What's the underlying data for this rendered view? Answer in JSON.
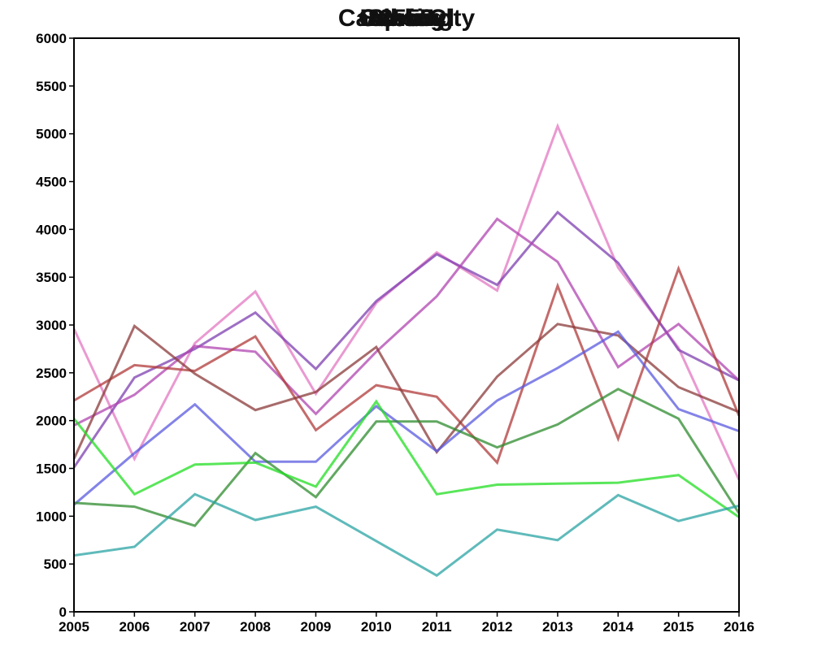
{
  "chart_data": {
    "type": "line",
    "title_overlaps": [
      "Sanford",
      "Lansing",
      "Oakland",
      "Carson City",
      "Albany",
      "Spring",
      "1559",
      "2557"
    ],
    "x": [
      2005,
      2006,
      2007,
      2008,
      2009,
      2010,
      2011,
      2012,
      2013,
      2014,
      2015,
      2016
    ],
    "x_ticks": [
      "2005",
      "2006",
      "2007",
      "2008",
      "2009",
      "2010",
      "2011",
      "2012",
      "2013",
      "2014",
      "2015",
      "2016"
    ],
    "xlim": [
      2005,
      2016
    ],
    "ylim": [
      0,
      6000
    ],
    "y_ticks": [
      "0",
      "500",
      "1000",
      "1500",
      "2000",
      "2500",
      "3000",
      "3500",
      "4000",
      "4500",
      "5000",
      "5500",
      "6000"
    ],
    "grid": false,
    "series": [
      {
        "color": "#e377c2",
        "values": [
          2960,
          1600,
          2810,
          3350,
          2280,
          3230,
          3760,
          3360,
          5080,
          3600,
          2760,
          1380
        ]
      },
      {
        "color": "#7e3fb0",
        "values": [
          1510,
          2450,
          2750,
          3130,
          2540,
          3250,
          3740,
          3420,
          4180,
          3650,
          2740,
          2420
        ]
      },
      {
        "color": "#b044b0",
        "values": [
          1950,
          2270,
          2780,
          2720,
          2070,
          2720,
          3300,
          4110,
          3660,
          2560,
          3010,
          2420
        ]
      },
      {
        "color": "#b03a3a",
        "values": [
          2210,
          2580,
          2520,
          2880,
          1900,
          2370,
          2250,
          1560,
          3410,
          1810,
          3590,
          2050
        ]
      },
      {
        "color": "#8b3a3a",
        "values": [
          1600,
          2990,
          2490,
          2110,
          2300,
          2770,
          1670,
          2460,
          3010,
          2890,
          2350,
          2090
        ]
      },
      {
        "color": "#5a5ae0",
        "values": [
          1120,
          1660,
          2170,
          1570,
          1570,
          2150,
          1680,
          2210,
          2550,
          2930,
          2120,
          1890
        ]
      },
      {
        "color": "#2e8b2e",
        "values": [
          1140,
          1100,
          900,
          1660,
          1200,
          1990,
          1990,
          1720,
          1960,
          2330,
          2020,
          1030
        ]
      },
      {
        "color": "#22dd22",
        "values": [
          2020,
          1230,
          1540,
          1560,
          1310,
          2200,
          1230,
          1330,
          1340,
          1350,
          1430,
          990
        ]
      },
      {
        "color": "#2aa3a3",
        "values": [
          590,
          680,
          1230,
          960,
          1100,
          740,
          380,
          860,
          750,
          1220,
          950,
          1110
        ]
      }
    ]
  }
}
